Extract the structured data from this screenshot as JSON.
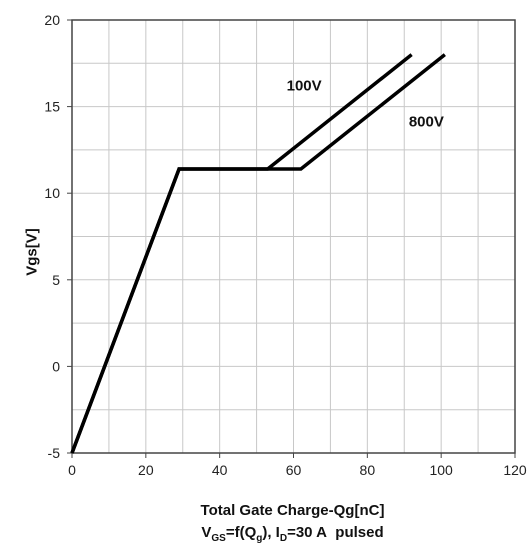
{
  "chart_data": {
    "type": "line",
    "xlabel_line1": "Total Gate Charge-Qg[nC]",
    "xlabel_line2": "VGS=f(Qg), ID=30 A  pulsed",
    "ylabel": "Vgs[V]",
    "xlim": [
      0,
      120
    ],
    "ylim": [
      -5,
      20
    ],
    "x_ticks": [
      0,
      20,
      40,
      60,
      80,
      100,
      120
    ],
    "y_ticks": [
      -5,
      0,
      5,
      10,
      15,
      20
    ],
    "grid": true,
    "series": [
      {
        "name": "100V",
        "x": [
          0,
          29,
          53,
          92
        ],
        "y": [
          -5,
          11.4,
          11.4,
          18
        ]
      },
      {
        "name": "800V",
        "x": [
          0,
          29,
          62,
          101
        ],
        "y": [
          -5,
          11.4,
          11.4,
          18
        ]
      }
    ],
    "line_color": "#000000",
    "grid_color": "#c8c8c8"
  }
}
